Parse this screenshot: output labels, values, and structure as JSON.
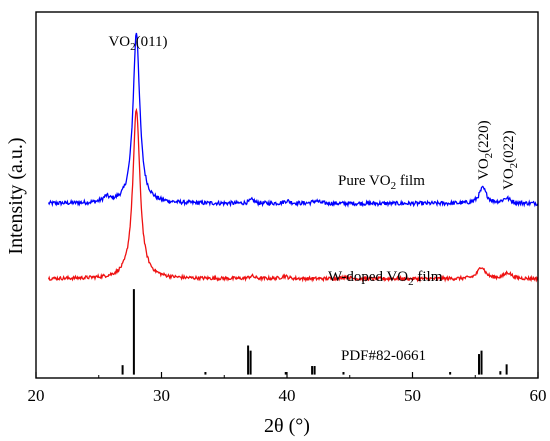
{
  "chart_data": {
    "type": "line",
    "title": "",
    "xlabel": "2θ (°)",
    "ylabel": "Intensity (a.u.)",
    "xlim": [
      20,
      60
    ],
    "x_ticks": [
      "20",
      "30",
      "40",
      "50",
      "60"
    ],
    "grid": false,
    "legend": "none",
    "series": [
      {
        "label": "Pure VO₂ film",
        "color": "#0000ff",
        "baseline": 1.0,
        "noise": 0.012,
        "peaks": [
          {
            "x": 28.0,
            "height": 1.0,
            "width": 0.32
          },
          {
            "x": 25.6,
            "height": 0.03,
            "width": 0.3
          },
          {
            "x": 37.2,
            "height": 0.02,
            "width": 0.25
          },
          {
            "x": 40.0,
            "height": 0.015,
            "width": 0.3
          },
          {
            "x": 42.3,
            "height": 0.015,
            "width": 0.3
          },
          {
            "x": 55.6,
            "height": 0.09,
            "width": 0.35
          },
          {
            "x": 57.5,
            "height": 0.03,
            "width": 0.35
          }
        ]
      },
      {
        "label": "W-doped VO₂ film",
        "color": "#ee1111",
        "baseline": 0.56,
        "noise": 0.01,
        "peaks": [
          {
            "x": 28.0,
            "height": 0.99,
            "width": 0.34
          },
          {
            "x": 37.2,
            "height": 0.015,
            "width": 0.25
          },
          {
            "x": 39.8,
            "height": 0.015,
            "width": 0.3
          },
          {
            "x": 44.7,
            "height": 0.012,
            "width": 0.3
          },
          {
            "x": 55.5,
            "height": 0.07,
            "width": 0.35
          },
          {
            "x": 57.6,
            "height": 0.035,
            "width": 0.35
          }
        ]
      }
    ],
    "reference": {
      "label": "PDF#82-0661",
      "color": "#000000",
      "baseline": 0.0,
      "sticks": [
        {
          "x": 26.9,
          "h": 0.055
        },
        {
          "x": 27.8,
          "h": 0.5
        },
        {
          "x": 33.5,
          "h": 0.015
        },
        {
          "x": 36.9,
          "h": 0.17
        },
        {
          "x": 37.1,
          "h": 0.14
        },
        {
          "x": 39.9,
          "h": 0.015
        },
        {
          "x": 42.0,
          "h": 0.05
        },
        {
          "x": 42.2,
          "h": 0.05
        },
        {
          "x": 44.5,
          "h": 0.015
        },
        {
          "x": 53.0,
          "h": 0.015
        },
        {
          "x": 55.3,
          "h": 0.12
        },
        {
          "x": 55.5,
          "h": 0.14
        },
        {
          "x": 57.0,
          "h": 0.02
        },
        {
          "x": 57.5,
          "h": 0.06
        }
      ]
    },
    "peak_labels": [
      {
        "formula": "VO",
        "sub": "2",
        "hkl": "(011)"
      },
      {
        "formula": "VO",
        "sub": "2",
        "hkl": "(220)"
      },
      {
        "formula": "VO",
        "sub": "2",
        "hkl": "(022)"
      }
    ],
    "series_labels": [
      {
        "prefix": "Pure VO",
        "sub": "2",
        "suffix": " film"
      },
      {
        "prefix": "W-doped VO",
        "sub": "2",
        "suffix": " film"
      }
    ]
  }
}
